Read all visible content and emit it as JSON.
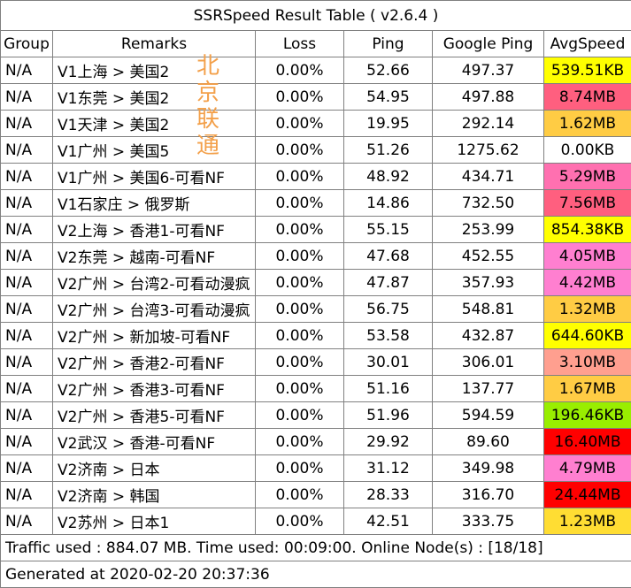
{
  "title": "SSRSpeed Result Table ( v2.6.4 )",
  "headers": {
    "group": "Group",
    "remarks": "Remarks",
    "loss": "Loss",
    "ping": "Ping",
    "google_ping": "Google Ping",
    "avg_speed": "AvgSpeed"
  },
  "rows": [
    {
      "group": "N/A",
      "remarks": "V1上海 > 美国2",
      "loss": "0.00%",
      "ping": "52.66",
      "google_ping": "497.37",
      "speed": "539.51KB",
      "speed_color": "#ffff00"
    },
    {
      "group": "N/A",
      "remarks": "V1东莞 > 美国2",
      "loss": "0.00%",
      "ping": "54.95",
      "google_ping": "497.88",
      "speed": "8.74MB",
      "speed_color": "#ff5f7f"
    },
    {
      "group": "N/A",
      "remarks": "V1天津 > 美国2",
      "loss": "0.00%",
      "ping": "19.95",
      "google_ping": "292.14",
      "speed": "1.62MB",
      "speed_color": "#ffcc44"
    },
    {
      "group": "N/A",
      "remarks": "V1广州 > 美国5",
      "loss": "0.00%",
      "ping": "51.26",
      "google_ping": "1275.62",
      "speed": "0.00KB",
      "speed_color": "#ffffff"
    },
    {
      "group": "N/A",
      "remarks": "V1广州 > 美国6-可看NF",
      "loss": "0.00%",
      "ping": "48.92",
      "google_ping": "434.71",
      "speed": "5.29MB",
      "speed_color": "#ff70b0"
    },
    {
      "group": "N/A",
      "remarks": "V1石家庄 > 俄罗斯",
      "loss": "0.00%",
      "ping": "14.86",
      "google_ping": "732.50",
      "speed": "7.56MB",
      "speed_color": "#ff5f7f"
    },
    {
      "group": "N/A",
      "remarks": "V2上海 > 香港1-可看NF",
      "loss": "0.00%",
      "ping": "55.15",
      "google_ping": "253.99",
      "speed": "854.38KB",
      "speed_color": "#ffff00"
    },
    {
      "group": "N/A",
      "remarks": "V2东莞 > 越南-可看NF",
      "loss": "0.00%",
      "ping": "47.68",
      "google_ping": "452.55",
      "speed": "4.05MB",
      "speed_color": "#ff7fd0"
    },
    {
      "group": "N/A",
      "remarks": "V2广州 > 台湾2-可看动漫疯",
      "loss": "0.00%",
      "ping": "47.87",
      "google_ping": "357.93",
      "speed": "4.42MB",
      "speed_color": "#ff7fd0"
    },
    {
      "group": "N/A",
      "remarks": "V2广州 > 台湾3-可看动漫疯",
      "loss": "0.00%",
      "ping": "56.75",
      "google_ping": "548.81",
      "speed": "1.32MB",
      "speed_color": "#ffcc44"
    },
    {
      "group": "N/A",
      "remarks": "V2广州 > 新加坡-可看NF",
      "loss": "0.00%",
      "ping": "53.58",
      "google_ping": "432.87",
      "speed": "644.60KB",
      "speed_color": "#ffff00"
    },
    {
      "group": "N/A",
      "remarks": "V2广州 > 香港2-可看NF",
      "loss": "0.00%",
      "ping": "30.01",
      "google_ping": "306.01",
      "speed": "3.10MB",
      "speed_color": "#ff9f8f"
    },
    {
      "group": "N/A",
      "remarks": "V2广州 > 香港3-可看NF",
      "loss": "0.00%",
      "ping": "51.16",
      "google_ping": "137.77",
      "speed": "1.67MB",
      "speed_color": "#ffcc44"
    },
    {
      "group": "N/A",
      "remarks": "V2广州 > 香港5-可看NF",
      "loss": "0.00%",
      "ping": "51.96",
      "google_ping": "594.59",
      "speed": "196.46KB",
      "speed_color": "#99ee00"
    },
    {
      "group": "N/A",
      "remarks": "V2武汉 > 香港-可看NF",
      "loss": "0.00%",
      "ping": "29.92",
      "google_ping": "89.60",
      "speed": "16.40MB",
      "speed_color": "#ff0000"
    },
    {
      "group": "N/A",
      "remarks": "V2济南 > 日本",
      "loss": "0.00%",
      "ping": "31.12",
      "google_ping": "349.98",
      "speed": "4.79MB",
      "speed_color": "#ff7fd0"
    },
    {
      "group": "N/A",
      "remarks": "V2济南 > 韩国",
      "loss": "0.00%",
      "ping": "28.33",
      "google_ping": "316.70",
      "speed": "24.44MB",
      "speed_color": "#ff0000"
    },
    {
      "group": "N/A",
      "remarks": "V2苏州 > 日本1",
      "loss": "0.00%",
      "ping": "42.51",
      "google_ping": "333.75",
      "speed": "1.23MB",
      "speed_color": "#ffdd33"
    }
  ],
  "footer": {
    "traffic": "Traffic used : 884.07 MB. Time used: 00:09:00. Online Node(s) : [18/18]",
    "generated": "Generated at 2020-02-20 20:37:36"
  },
  "watermark": [
    "北",
    "京",
    "联",
    "通"
  ]
}
